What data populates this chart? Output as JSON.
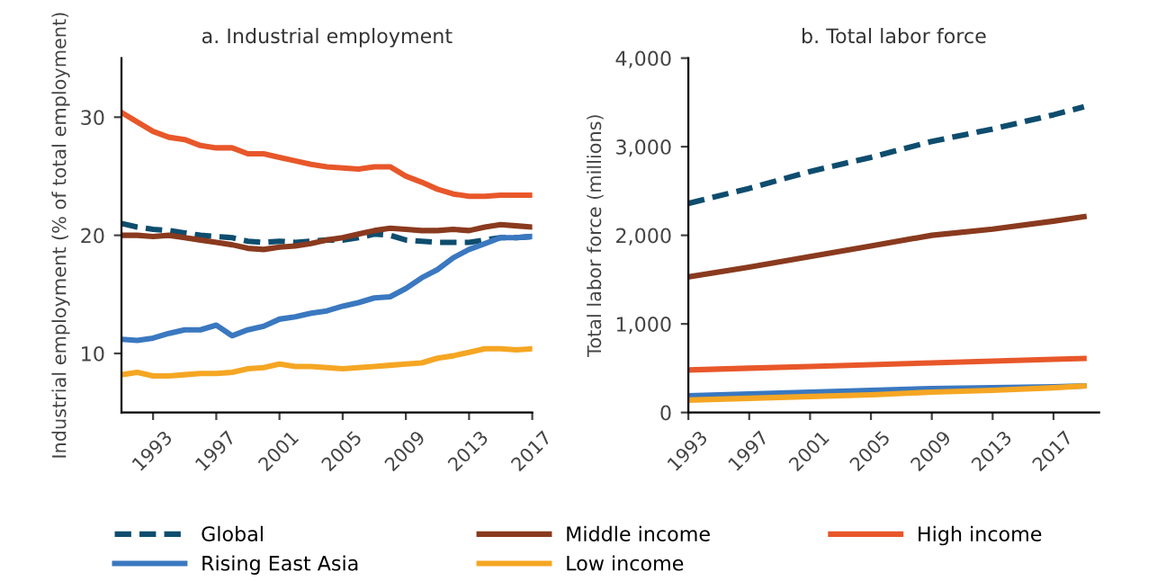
{
  "chart_data": [
    {
      "type": "line",
      "title": "a. Industrial employment",
      "ylabel": "Industrial employment (% of total employment)",
      "x": [
        1991,
        1992,
        1993,
        1994,
        1995,
        1996,
        1997,
        1998,
        1999,
        2000,
        2001,
        2002,
        2003,
        2004,
        2005,
        2006,
        2007,
        2008,
        2009,
        2010,
        2011,
        2012,
        2013,
        2014,
        2015,
        2016,
        2017
      ],
      "xlim": [
        1991,
        2017
      ],
      "xticks": [
        1993,
        1997,
        2001,
        2005,
        2009,
        2013,
        2017
      ],
      "ylim": [
        5,
        35
      ],
      "yticks": [
        10,
        20,
        30
      ],
      "grid": false,
      "legend": "bottom",
      "series": [
        {
          "name": "Global",
          "color": "#0e4d6e",
          "line_style": "dashed",
          "values": [
            21.0,
            20.7,
            20.5,
            20.4,
            20.2,
            20.0,
            19.9,
            19.8,
            19.5,
            19.4,
            19.5,
            19.4,
            19.5,
            19.6,
            19.6,
            19.8,
            20.1,
            20.0,
            19.6,
            19.5,
            19.4,
            19.4,
            19.4,
            19.6,
            19.8,
            19.8,
            19.9
          ]
        },
        {
          "name": "Rising East Asia",
          "color": "#3a78c0",
          "values": [
            11.2,
            11.1,
            11.3,
            11.7,
            12.0,
            12.0,
            12.4,
            11.5,
            12.0,
            12.3,
            12.9,
            13.1,
            13.4,
            13.6,
            14.0,
            14.3,
            14.7,
            14.8,
            15.5,
            16.4,
            17.1,
            18.1,
            18.8,
            19.3,
            19.8,
            19.8,
            19.9
          ]
        },
        {
          "name": "Middle income",
          "color": "#8a3a1e",
          "values": [
            20.0,
            20.0,
            19.9,
            20.0,
            19.8,
            19.6,
            19.4,
            19.2,
            18.9,
            18.8,
            19.0,
            19.1,
            19.3,
            19.6,
            19.8,
            20.1,
            20.4,
            20.6,
            20.5,
            20.4,
            20.4,
            20.5,
            20.4,
            20.7,
            20.9,
            20.8,
            20.7
          ]
        },
        {
          "name": "Low income",
          "color": "#f5a623",
          "values": [
            8.2,
            8.4,
            8.1,
            8.1,
            8.2,
            8.3,
            8.3,
            8.4,
            8.7,
            8.8,
            9.1,
            8.9,
            8.9,
            8.8,
            8.7,
            8.8,
            8.9,
            9.0,
            9.1,
            9.2,
            9.6,
            9.8,
            10.1,
            10.4,
            10.4,
            10.3,
            10.4
          ]
        },
        {
          "name": "High income",
          "color": "#e8572a",
          "values": [
            30.4,
            29.6,
            28.8,
            28.3,
            28.1,
            27.6,
            27.4,
            27.4,
            26.9,
            26.9,
            26.6,
            26.3,
            26.0,
            25.8,
            25.7,
            25.6,
            25.8,
            25.8,
            25.0,
            24.5,
            23.9,
            23.5,
            23.3,
            23.3,
            23.4,
            23.4,
            23.4
          ]
        }
      ]
    },
    {
      "type": "line",
      "title": "b. Total labor force",
      "ylabel": "Total labor force (millions)",
      "x": [
        1993,
        1997,
        2001,
        2005,
        2009,
        2013,
        2017,
        2019
      ],
      "xlim": [
        1993,
        2020
      ],
      "xticks": [
        1993,
        1997,
        2001,
        2005,
        2009,
        2013,
        2017
      ],
      "ylim": [
        0,
        4000
      ],
      "yticks": [
        0,
        {
          "value": 1000,
          "label": "1,000"
        },
        {
          "value": 2000,
          "label": "2,000"
        },
        {
          "value": 3000,
          "label": "3,000"
        },
        {
          "value": 4000,
          "label": "4,000"
        }
      ],
      "grid": false,
      "series": [
        {
          "color": "#0e4d6e",
          "line_style": "dashed",
          "values": [
            2360,
            2530,
            2720,
            2880,
            3060,
            3200,
            3360,
            3450
          ]
        },
        {
          "color": "#3a78c0",
          "values": [
            190,
            210,
            230,
            250,
            270,
            280,
            290,
            300
          ]
        },
        {
          "color": "#8a3a1e",
          "values": [
            1530,
            1640,
            1760,
            1880,
            2000,
            2070,
            2160,
            2210
          ]
        },
        {
          "color": "#f5a623",
          "values": [
            140,
            160,
            180,
            200,
            230,
            250,
            280,
            300
          ]
        },
        {
          "color": "#e8572a",
          "values": [
            480,
            500,
            520,
            540,
            560,
            580,
            600,
            610
          ]
        }
      ]
    }
  ]
}
